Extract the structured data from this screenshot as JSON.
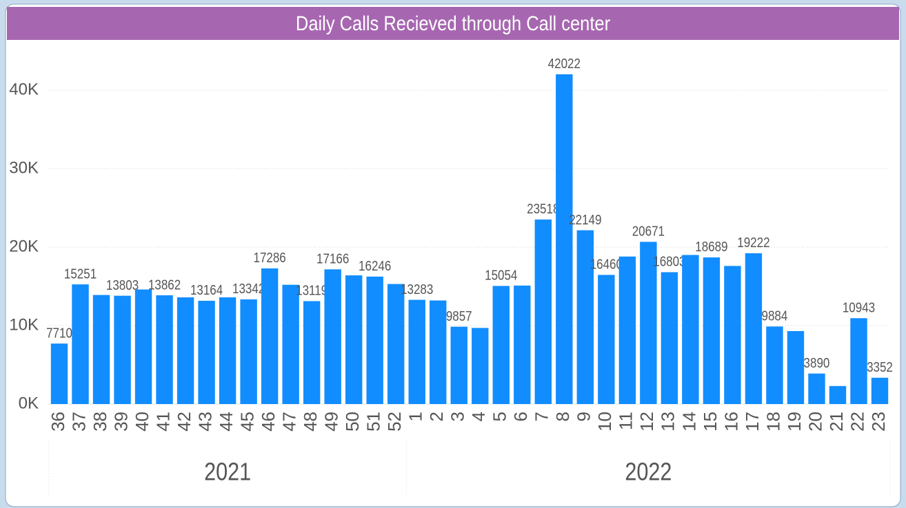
{
  "chart_data": {
    "type": "bar",
    "title": "Daily Calls Recieved through Call center",
    "categories": [
      "36",
      "37",
      "38",
      "39",
      "40",
      "41",
      "42",
      "43",
      "44",
      "45",
      "46",
      "47",
      "48",
      "49",
      "50",
      "51",
      "52",
      "1",
      "2",
      "3",
      "4",
      "5",
      "6",
      "7",
      "8",
      "9",
      "10",
      "11",
      "12",
      "13",
      "14",
      "15",
      "16",
      "17",
      "18",
      "19",
      "20",
      "21",
      "22",
      "23"
    ],
    "values": [
      7710,
      15251,
      13900,
      13803,
      14600,
      13862,
      13600,
      13164,
      13600,
      13342,
      17286,
      15200,
      13119,
      17166,
      16400,
      16246,
      15300,
      13283,
      13200,
      9857,
      9700,
      15054,
      15100,
      23518,
      42022,
      22149,
      16460,
      18800,
      20671,
      16803,
      19000,
      18689,
      17600,
      19222,
      9884,
      9300,
      3890,
      2300,
      10943,
      3352
    ],
    "value_labels": [
      "7710",
      "15251",
      null,
      "13803",
      null,
      "13862",
      null,
      "13164",
      null,
      "13342",
      "17286",
      null,
      "13119",
      "17166",
      null,
      "16246",
      null,
      "13283",
      null,
      "9857",
      null,
      "15054",
      null,
      "23518",
      "42022",
      "22149",
      "16460",
      null,
      "20671",
      "16803",
      null,
      "18689",
      null,
      "19222",
      "9884",
      null,
      "3890",
      null,
      "10943",
      "3352"
    ],
    "x_groups": [
      {
        "label": "2021",
        "span": 17
      },
      {
        "label": "2022",
        "span": 23
      }
    ],
    "color": "#118dff",
    "ylim": [
      0,
      45000
    ],
    "yticks": [
      {
        "value": 0,
        "label": "0K"
      },
      {
        "value": 10000,
        "label": "10K"
      },
      {
        "value": 20000,
        "label": "20K"
      },
      {
        "value": 30000,
        "label": "30K"
      },
      {
        "value": 40000,
        "label": "40K"
      }
    ],
    "grid": true
  }
}
